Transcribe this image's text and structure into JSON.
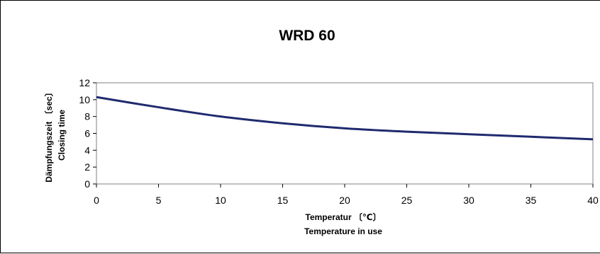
{
  "chart_data": {
    "type": "line",
    "title": "WRD 60",
    "xlabel_lines": [
      "Temperatur 〔℃〕",
      "Temperature in use"
    ],
    "ylabel_lines": [
      "Dämpfungszeit 〔sec〕",
      "Closing time"
    ],
    "xlim": [
      0,
      40
    ],
    "ylim": [
      0,
      12
    ],
    "x_ticks": [
      0,
      5,
      10,
      15,
      20,
      25,
      30,
      35,
      40
    ],
    "y_ticks": [
      0,
      2,
      4,
      6,
      8,
      10,
      12
    ],
    "grid": false,
    "legend": "none",
    "series": [
      {
        "color": "#1f2a6e",
        "x": [
          0,
          5,
          10,
          15,
          20,
          25,
          30,
          35,
          40
        ],
        "y": [
          10.3,
          9.1,
          8.0,
          7.2,
          6.6,
          6.2,
          5.9,
          5.6,
          5.3
        ]
      }
    ]
  }
}
